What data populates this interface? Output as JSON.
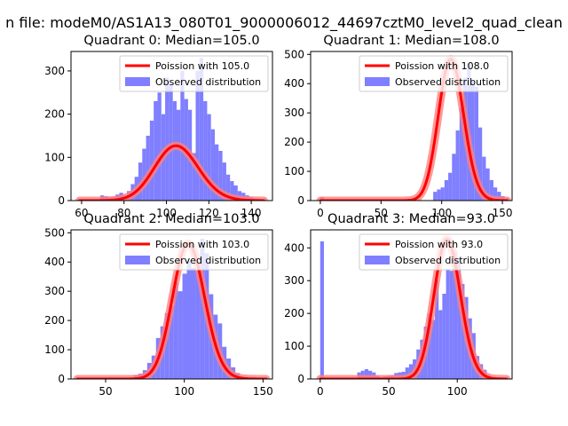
{
  "figure": {
    "suptitle": "n file: modeM0/AS1A13_080T01_9000006012_44697cztM0_level2_quad_clean"
  },
  "colors": {
    "hist": "#7f7fff",
    "curve": "#ff0000",
    "curve_glow": "#ff7f7f",
    "axes": "#000000"
  },
  "chart_data": [
    {
      "type": "bar",
      "title": "Quadrant 0: Median=105.0",
      "xlabel": "",
      "ylabel": "",
      "xlim": [
        55,
        150
      ],
      "ylim": [
        0,
        345
      ],
      "xticks": [
        60,
        80,
        100,
        120,
        140
      ],
      "yticks": [
        0,
        100,
        200,
        300
      ],
      "legend_position": "top-right",
      "series": [
        {
          "name": "Poission with 105.0",
          "kind": "line",
          "lambda": 105.0,
          "scale": 3260
        },
        {
          "name": "Observed distribution",
          "kind": "hist",
          "bin_start": 58,
          "bin_width": 1.8,
          "values": [
            0,
            0,
            0,
            0,
            0,
            0,
            12,
            10,
            8,
            8,
            14,
            18,
            12,
            22,
            38,
            55,
            88,
            120,
            150,
            185,
            230,
            250,
            200,
            285,
            270,
            230,
            210,
            300,
            235,
            210,
            110,
            300,
            330,
            230,
            200,
            165,
            130,
            115,
            88,
            60,
            45,
            35,
            22,
            18,
            12,
            8,
            5,
            3
          ]
        }
      ]
    },
    {
      "type": "bar",
      "title": "Quadrant 1: Median=108.0",
      "xlabel": "",
      "ylabel": "",
      "xlim": [
        -8,
        158
      ],
      "ylim": [
        0,
        510
      ],
      "xticks": [
        0,
        50,
        100,
        150
      ],
      "yticks": [
        0,
        100,
        200,
        300,
        400,
        500
      ],
      "legend_position": "top-right",
      "series": [
        {
          "name": "Poission with 108.0",
          "kind": "line",
          "lambda": 108.0,
          "scale": 12600
        },
        {
          "name": "Observed distribution",
          "kind": "hist",
          "bin_start": 0,
          "bin_width": 3.1,
          "values": [
            12,
            0,
            0,
            0,
            0,
            0,
            0,
            0,
            0,
            0,
            0,
            0,
            0,
            0,
            0,
            0,
            0,
            0,
            0,
            0,
            0,
            0,
            0,
            0,
            0,
            0,
            0,
            0,
            0,
            0,
            30,
            38,
            45,
            70,
            95,
            160,
            240,
            320,
            420,
            470,
            410,
            390,
            250,
            150,
            110,
            70,
            45,
            30,
            15,
            8,
            0
          ]
        }
      ]
    },
    {
      "type": "bar",
      "title": "Quadrant 2: Median=103.0",
      "xlabel": "",
      "ylabel": "",
      "xlim": [
        28,
        156
      ],
      "ylim": [
        0,
        510
      ],
      "xticks": [
        50,
        100,
        150
      ],
      "yticks": [
        0,
        100,
        200,
        300,
        400,
        500
      ],
      "legend_position": "top-right",
      "series": [
        {
          "name": "Poission with 103.0",
          "kind": "line",
          "lambda": 103.0,
          "scale": 11800
        },
        {
          "name": "Observed distribution",
          "kind": "hist",
          "bin_start": 68,
          "bin_width": 2.8,
          "values": [
            12,
            18,
            30,
            55,
            80,
            140,
            180,
            225,
            250,
            330,
            300,
            360,
            405,
            380,
            370,
            480,
            430,
            290,
            220,
            190,
            110,
            70,
            40,
            20,
            10,
            5
          ]
        }
      ]
    },
    {
      "type": "bar",
      "title": "Quadrant 3: Median=93.0",
      "xlabel": "",
      "ylabel": "",
      "xlim": [
        -7,
        140
      ],
      "ylim": [
        0,
        455
      ],
      "xticks": [
        0,
        50,
        100
      ],
      "yticks": [
        0,
        100,
        200,
        300,
        400
      ],
      "legend_position": "top-right",
      "series": [
        {
          "name": "Poission with 93.0",
          "kind": "line",
          "lambda": 93.0,
          "scale": 10300
        },
        {
          "name": "Observed distribution",
          "kind": "hist",
          "bin_start": 0,
          "bin_width": 2.7,
          "values": [
            420,
            0,
            0,
            0,
            0,
            0,
            0,
            0,
            0,
            0,
            20,
            25,
            30,
            25,
            20,
            10,
            5,
            8,
            10,
            12,
            18,
            20,
            22,
            35,
            45,
            60,
            90,
            120,
            160,
            200,
            180,
            300,
            210,
            260,
            335,
            330,
            390,
            370,
            290,
            250,
            185,
            140,
            70,
            45,
            28,
            12,
            5
          ]
        }
      ]
    }
  ]
}
